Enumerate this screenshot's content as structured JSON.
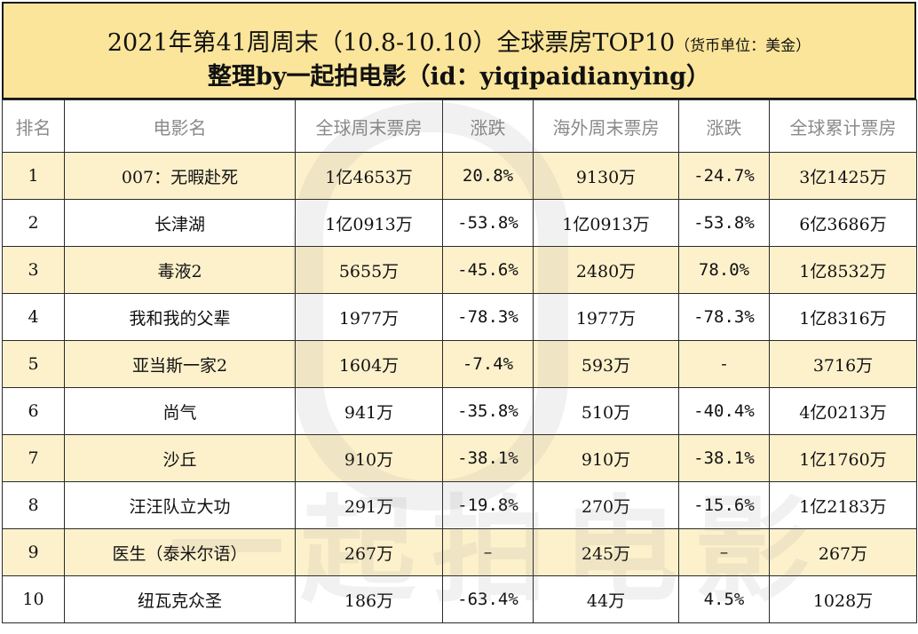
{
  "header": {
    "title_main": "2021年第41周周末（10.8-10.10）全球票房TOP10",
    "title_unit": "（货币单位：美金）",
    "subtitle": "整理by一起拍电影（id：yiqipaidianying）"
  },
  "watermark": {
    "text": "一起拍电影"
  },
  "colors": {
    "up": "#2aa7e0",
    "down": "#e51f1f",
    "header_bg": "#fbe59a",
    "alt_row_bg": "#fdf1cc"
  },
  "table": {
    "columns": [
      "排名",
      "电影名",
      "全球周末票房",
      "涨跌",
      "海外周末票房",
      "涨跌",
      "全球累计票房"
    ],
    "rows": [
      {
        "rank": "1",
        "title": "007：无暇赴死",
        "global_weekend": "1亿4653万",
        "global_change": "20.8%",
        "global_dir": "up",
        "overseas_weekend": "9130万",
        "overseas_change": "-24.7%",
        "overseas_dir": "down",
        "cumulative": "3亿1425万"
      },
      {
        "rank": "2",
        "title": "长津湖",
        "global_weekend": "1亿0913万",
        "global_change": "-53.8%",
        "global_dir": "down",
        "overseas_weekend": "1亿0913万",
        "overseas_change": "-53.8%",
        "overseas_dir": "down",
        "cumulative": "6亿3686万"
      },
      {
        "rank": "3",
        "title": "毒液2",
        "global_weekend": "5655万",
        "global_change": "-45.6%",
        "global_dir": "down",
        "overseas_weekend": "2480万",
        "overseas_change": "78.0%",
        "overseas_dir": "up",
        "cumulative": "1亿8532万"
      },
      {
        "rank": "4",
        "title": "我和我的父辈",
        "global_weekend": "1977万",
        "global_change": "-78.3%",
        "global_dir": "down",
        "overseas_weekend": "1977万",
        "overseas_change": "-78.3%",
        "overseas_dir": "down",
        "cumulative": "1亿8316万"
      },
      {
        "rank": "5",
        "title": "亚当斯一家2",
        "global_weekend": "1604万",
        "global_change": "-7.4%",
        "global_dir": "down",
        "overseas_weekend": "593万",
        "overseas_change": "-",
        "overseas_dir": "flat",
        "cumulative": "3716万"
      },
      {
        "rank": "6",
        "title": "尚气",
        "global_weekend": "941万",
        "global_change": "-35.8%",
        "global_dir": "down",
        "overseas_weekend": "510万",
        "overseas_change": "-40.4%",
        "overseas_dir": "down",
        "cumulative": "4亿0213万"
      },
      {
        "rank": "7",
        "title": "沙丘",
        "global_weekend": "910万",
        "global_change": "-38.1%",
        "global_dir": "down",
        "overseas_weekend": "910万",
        "overseas_change": "-38.1%",
        "overseas_dir": "down",
        "cumulative": "1亿1760万"
      },
      {
        "rank": "8",
        "title": "汪汪队立大功",
        "global_weekend": "291万",
        "global_change": "-19.8%",
        "global_dir": "down",
        "overseas_weekend": "270万",
        "overseas_change": "-15.6%",
        "overseas_dir": "down",
        "cumulative": "1亿2183万"
      },
      {
        "rank": "9",
        "title": "医生（泰米尔语）",
        "global_weekend": "267万",
        "global_change": "–",
        "global_dir": "flat",
        "overseas_weekend": "245万",
        "overseas_change": "–",
        "overseas_dir": "flat",
        "cumulative": "267万"
      },
      {
        "rank": "10",
        "title": "纽瓦克众圣",
        "global_weekend": "186万",
        "global_change": "-63.4%",
        "global_dir": "down",
        "overseas_weekend": "44万",
        "overseas_change": "4.5%",
        "overseas_dir": "up",
        "cumulative": "1028万"
      }
    ]
  }
}
